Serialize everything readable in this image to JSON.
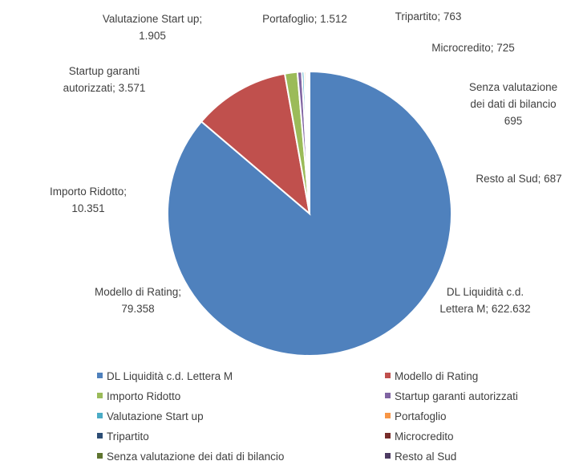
{
  "chart_data": {
    "type": "pie",
    "categories": [
      "DL Liquidità c.d. Lettera M",
      "Modello di Rating",
      "Importo Ridotto",
      "Startup garanti autorizzati",
      "Valutazione Start up",
      "Portafoglio",
      "Tripartito",
      "Microcredito",
      "Senza valutazione dei dati di bilancio",
      "Resto al Sud"
    ],
    "values": [
      622632,
      79358,
      10351,
      3571,
      1905,
      1512,
      763,
      725,
      695,
      687
    ],
    "value_labels": [
      [
        "DL Liquidità c.d.",
        "Lettera M; 622.632"
      ],
      [
        "Modello di Rating;",
        "79.358"
      ],
      [
        "Importo Ridotto;",
        "10.351"
      ],
      [
        "Startup garanti",
        "autorizzati; 3.571"
      ],
      [
        "Valutazione Start up;",
        "1.905"
      ],
      [
        "Portafoglio; 1.512"
      ],
      [
        "Tripartito; 763"
      ],
      [
        "Microcredito; 725"
      ],
      [
        "Senza valutazione",
        "dei dati di bilancio",
        "695"
      ],
      [
        "Resto al Sud; 687"
      ]
    ],
    "colors": [
      "#4f81bd",
      "#c0504d",
      "#9bbb59",
      "#8064a2",
      "#4bacc6",
      "#f79646",
      "#2c4d75",
      "#772c2a",
      "#5f7530",
      "#4d3b62"
    ],
    "legend": "bottom"
  }
}
